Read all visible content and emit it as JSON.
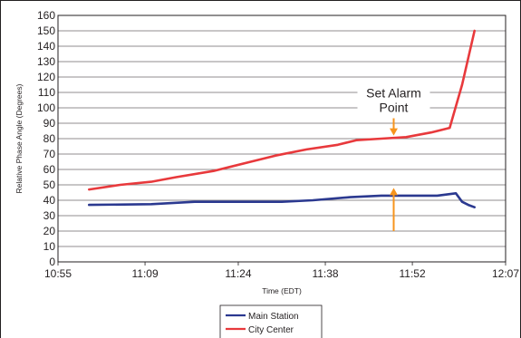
{
  "chart_data": {
    "type": "line",
    "title": "",
    "xlabel": "Time (EDT)",
    "ylabel": "Relative Phase Angle (Degrees)",
    "xlim": [
      "10:55",
      "12:07"
    ],
    "ylim": [
      0,
      160
    ],
    "x_ticks": [
      "10:55",
      "11:09",
      "11:24",
      "11:38",
      "11:52",
      "12:07"
    ],
    "y_ticks": [
      0,
      10,
      20,
      30,
      40,
      50,
      60,
      70,
      80,
      90,
      100,
      110,
      120,
      130,
      140,
      150,
      160
    ],
    "grid": "horizontal",
    "legend_position": "bottom-center",
    "series": [
      {
        "name": "Main Station",
        "color": "#2b3990",
        "x": [
          "11:00",
          "11:10",
          "11:17",
          "11:24",
          "11:31",
          "11:36",
          "11:42",
          "11:47",
          "11:52",
          "11:56",
          "11:59",
          "12:00",
          "12:01",
          "12:02"
        ],
        "values": [
          37,
          37.5,
          39,
          39,
          39,
          40,
          42,
          43,
          43,
          43,
          44.5,
          39,
          37,
          35.5
        ]
      },
      {
        "name": "City Center",
        "color": "#e8393c",
        "x": [
          "11:00",
          "11:05",
          "11:10",
          "11:14",
          "11:20",
          "11:26",
          "11:30",
          "11:35",
          "11:40",
          "11:43",
          "11:47",
          "11:51",
          "11:55",
          "11:58",
          "12:00",
          "12:02"
        ],
        "values": [
          47,
          50,
          52,
          55,
          59,
          65,
          69,
          73,
          76,
          79,
          80,
          81,
          84,
          87,
          115,
          150
        ]
      }
    ],
    "annotations": [
      {
        "text_lines": [
          "Set Alarm",
          "Point"
        ],
        "x": "11:49",
        "arrow_down_from": 95,
        "arrow_down_to": 82,
        "arrow_up_from": 20,
        "arrow_up_to": 48,
        "color": "#f7941d"
      }
    ]
  }
}
